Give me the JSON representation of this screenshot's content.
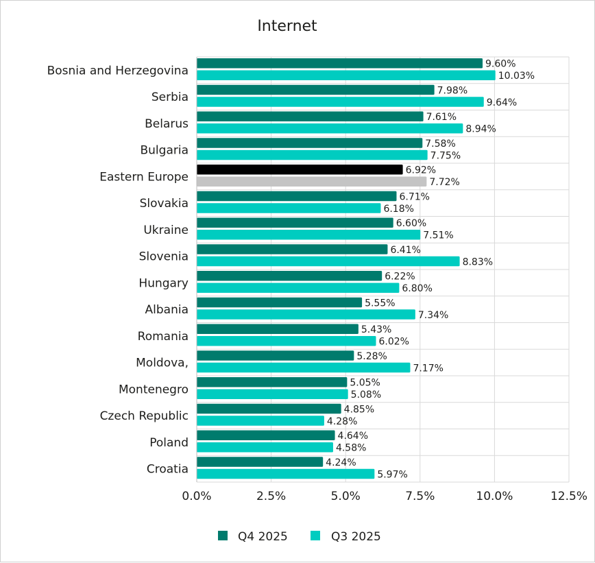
{
  "chart_data": {
    "type": "bar",
    "orientation": "horizontal",
    "title": "Internet",
    "xlabel": "",
    "ylabel": "",
    "xlim": [
      0,
      12.5
    ],
    "x_ticks": [
      0,
      2.5,
      5.0,
      7.5,
      10.0,
      12.5
    ],
    "x_tick_labels": [
      "0.0%",
      "2.5%",
      "5.0%",
      "7.5%",
      "10.0%",
      "12.5%"
    ],
    "grid": true,
    "legend_position": "bottom",
    "categories": [
      "Bosnia and Herzegovina",
      "Serbia",
      "Belarus",
      "Bulgaria",
      "Eastern Europe",
      "Slovakia",
      "Ukraine",
      "Slovenia",
      "Hungary",
      "Albania",
      "Romania",
      "Moldova,",
      "Montenegro",
      "Czech Republic",
      "Poland",
      "Croatia"
    ],
    "highlight_category": "Eastern Europe",
    "highlight_colors": [
      "#000000",
      "#c4c4c4"
    ],
    "series": [
      {
        "name": "Q4 2025",
        "color": "#007b6d",
        "values": [
          9.6,
          7.98,
          7.61,
          7.58,
          6.92,
          6.71,
          6.6,
          6.41,
          6.22,
          5.55,
          5.43,
          5.28,
          5.05,
          4.85,
          4.64,
          4.24
        ],
        "labels": [
          "9.60%",
          "7.98%",
          "7.61%",
          "7.58%",
          "6.92%",
          "6.71%",
          "6.60%",
          "6.41%",
          "6.22%",
          "5.55%",
          "5.43%",
          "5.28%",
          "5.05%",
          "4.85%",
          "4.64%",
          "4.24%"
        ]
      },
      {
        "name": "Q3 2025",
        "color": "#00ccc0",
        "values": [
          10.03,
          9.64,
          8.94,
          7.75,
          7.72,
          6.18,
          7.51,
          8.83,
          6.8,
          7.34,
          6.02,
          7.17,
          5.08,
          4.28,
          4.58,
          5.97
        ],
        "labels": [
          "10.03%",
          "9.64%",
          "8.94%",
          "7.75%",
          "7.72%",
          "6.18%",
          "7.51%",
          "8.83%",
          "6.80%",
          "7.34%",
          "6.02%",
          "7.17%",
          "5.08%",
          "4.28%",
          "4.58%",
          "5.97%"
        ]
      }
    ]
  }
}
